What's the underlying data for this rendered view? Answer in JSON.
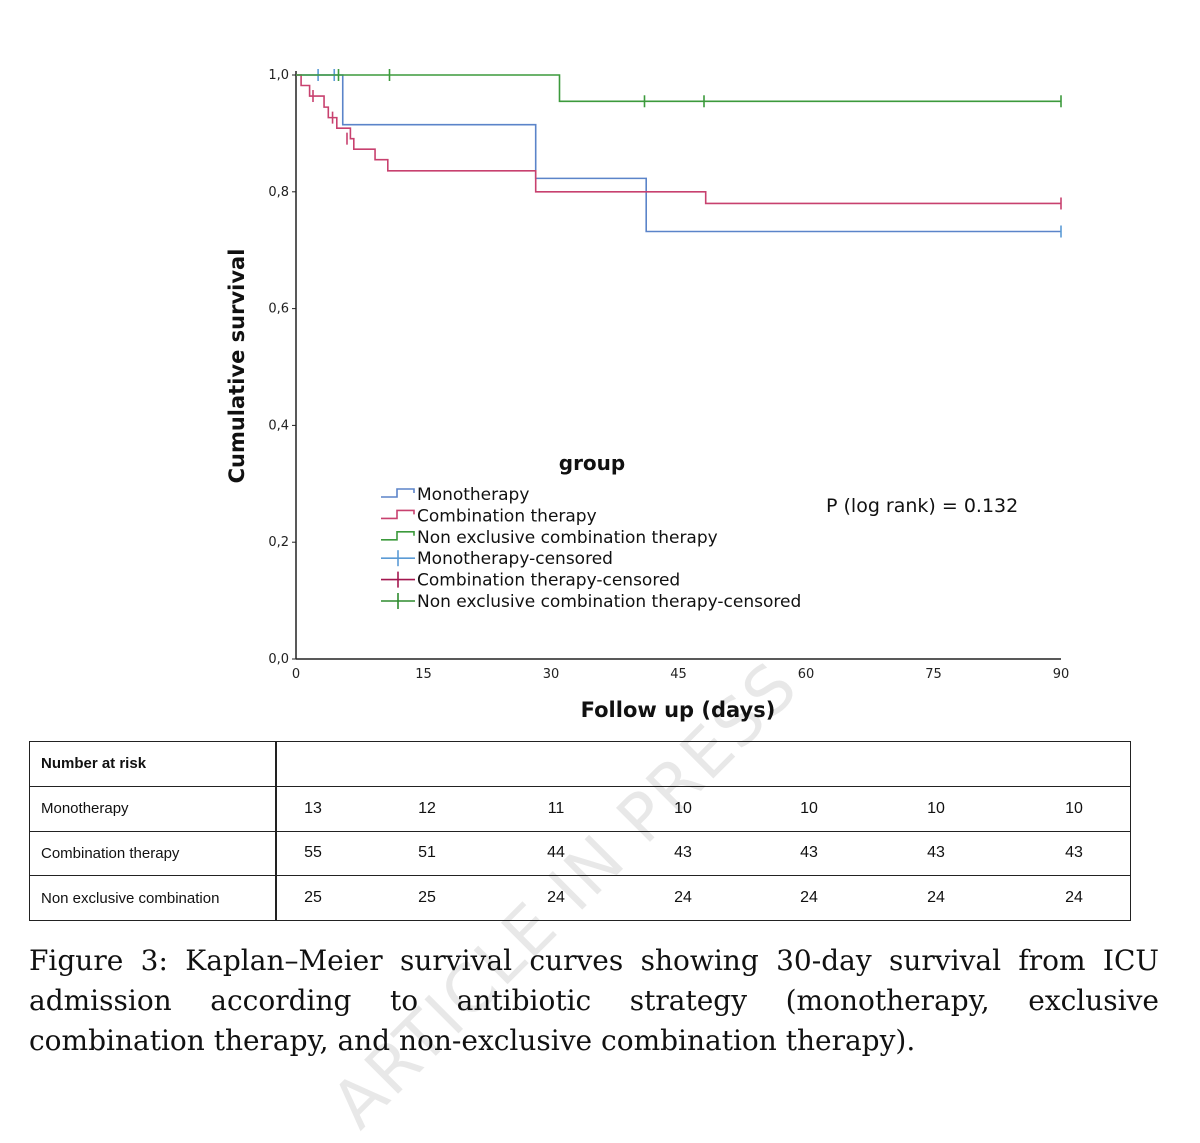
{
  "chart_data": {
    "type": "line",
    "subtype": "kaplan-meier-step",
    "xlabel": "Follow up (days)",
    "ylabel": "Cumulative survival",
    "xlim": [
      0,
      90
    ],
    "ylim": [
      0.0,
      1.0
    ],
    "x_ticks": [
      0,
      15,
      30,
      45,
      60,
      75,
      90
    ],
    "y_ticks": [
      0.0,
      0.2,
      0.4,
      0.6,
      0.8,
      1.0
    ],
    "x_tick_labels": [
      "0",
      "15",
      "30",
      "45",
      "60",
      "75",
      "90"
    ],
    "y_tick_labels": [
      "0,0",
      "0,2",
      "0,4",
      "0,6",
      "0,8",
      "1,0"
    ],
    "legend": {
      "title": "group",
      "placement": "center",
      "entries": [
        {
          "label": "Monotherapy",
          "kind": "line",
          "color": "#5b84c9"
        },
        {
          "label": "Combination therapy",
          "kind": "line",
          "color": "#c8416f"
        },
        {
          "label": "Non exclusive combination therapy",
          "kind": "line",
          "color": "#3c9a3c"
        },
        {
          "label": "Monotherapy-censored",
          "kind": "censor",
          "color": "#5b9bd5"
        },
        {
          "label": "Combination therapy-censored",
          "kind": "censor",
          "color": "#a3174f"
        },
        {
          "label": "Non exclusive combination therapy-censored",
          "kind": "censor",
          "color": "#2e8b2e"
        }
      ]
    },
    "annotation": "P (log rank) = 0.132",
    "series": [
      {
        "name": "Monotherapy",
        "color": "#5b84c9",
        "censor_color": "#5b9bd5",
        "steps": [
          [
            0,
            1.0
          ],
          [
            5.5,
            0.915
          ],
          [
            28.2,
            0.823
          ],
          [
            41.2,
            0.732
          ],
          [
            90,
            0.732
          ]
        ],
        "censored": [
          [
            2.6,
            1.0
          ],
          [
            4.5,
            1.0
          ],
          [
            90,
            0.732
          ]
        ]
      },
      {
        "name": "Combination therapy",
        "color": "#c8416f",
        "steps": [
          [
            0,
            1.0
          ],
          [
            0.6,
            0.982
          ],
          [
            1.6,
            0.964
          ],
          [
            3.3,
            0.945
          ],
          [
            3.8,
            0.927
          ],
          [
            4.8,
            0.909
          ],
          [
            6.4,
            0.891
          ],
          [
            6.8,
            0.873
          ],
          [
            9.3,
            0.855
          ],
          [
            10.8,
            0.836
          ],
          [
            28.2,
            0.8
          ],
          [
            48.2,
            0.78
          ],
          [
            90,
            0.78
          ]
        ],
        "censored": [
          [
            2.0,
            0.964
          ],
          [
            4.3,
            0.927
          ],
          [
            6.0,
            0.891
          ],
          [
            90,
            0.78
          ]
        ]
      },
      {
        "name": "Non exclusive combination therapy",
        "color": "#3c9a3c",
        "steps": [
          [
            0,
            1.0
          ],
          [
            31.0,
            0.955
          ],
          [
            90,
            0.955
          ]
        ],
        "censored": [
          [
            5.0,
            1.0
          ],
          [
            11.0,
            1.0
          ],
          [
            41.0,
            0.955
          ],
          [
            48.0,
            0.955
          ],
          [
            90,
            0.955
          ]
        ]
      }
    ],
    "number_at_risk": {
      "header": "Number at risk",
      "time_points": [
        0,
        15,
        30,
        45,
        60,
        75,
        90
      ],
      "rows": [
        {
          "label": "Monotherapy",
          "values": [
            "13",
            "12",
            "11",
            "10",
            "10",
            "10",
            "10"
          ]
        },
        {
          "label": "Combination therapy",
          "values": [
            "55",
            "51",
            "44",
            "43",
            "43",
            "43",
            "43"
          ]
        },
        {
          "label": "Non exclusive combination",
          "values": [
            "25",
            "25",
            "24",
            "24",
            "24",
            "24",
            "24"
          ]
        }
      ]
    }
  },
  "caption": "Figure 3: Kaplan–Meier survival curves showing 30-day survival from ICU admission according to antibiotic strategy (monotherapy, exclusive combination therapy, and non-exclusive combination therapy).",
  "watermark": "ARTICLE IN PRESS"
}
